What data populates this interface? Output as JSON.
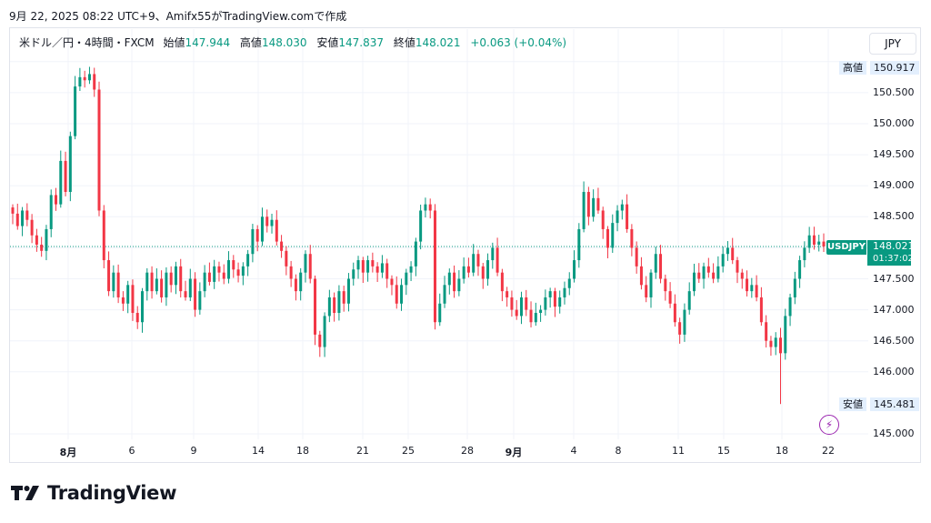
{
  "caption": "9月 22, 2025 08:22 UTC+9、Amifx55がTradingView.comで作成",
  "legend": {
    "symbol": "米ドル／円・4時間・FXCM",
    "open_label": "始値",
    "open": "147.944",
    "high_label": "高値",
    "high": "148.030",
    "low_label": "安値",
    "low": "147.837",
    "close_label": "終値",
    "close": "148.021",
    "change": "+0.063 (+0.04%)"
  },
  "currency_button": "JPY",
  "price_axis": {
    "ticks": [
      "150.500",
      "150.000",
      "149.500",
      "149.000",
      "148.500",
      "147.500",
      "147.000",
      "146.500",
      "146.000",
      "145.000"
    ],
    "high_tag_label": "高値",
    "high_tag_value": "150.917",
    "low_tag_label": "安値",
    "low_tag_value": "145.481",
    "symbol_tag": "USDJPY",
    "last_price": "148.021",
    "countdown": "01:37:02"
  },
  "time_axis": {
    "labels": [
      "8月",
      "6",
      "9",
      "14",
      "18",
      "21",
      "25",
      "28",
      "9月",
      "4",
      "8",
      "11",
      "15",
      "18",
      "22"
    ]
  },
  "logo_text": "TradingView",
  "colors": {
    "up": "#089981",
    "down": "#f23645",
    "grid": "#f0f3fa",
    "bolt": "#9c27b0"
  },
  "chart_data": {
    "type": "candlestick",
    "xlabels": [
      "8月",
      "6",
      "9",
      "14",
      "18",
      "21",
      "25",
      "28",
      "9月",
      "4",
      "8",
      "11",
      "15",
      "18",
      "22"
    ],
    "ylim": [
      144.85,
      151.0
    ],
    "grid": true,
    "last_close": 148.021,
    "period_high": 150.917,
    "period_low": 145.481,
    "closes": [
      148.55,
      148.35,
      148.6,
      148.45,
      148.2,
      148.05,
      147.95,
      148.3,
      148.85,
      148.7,
      149.4,
      148.9,
      149.8,
      150.6,
      150.75,
      150.7,
      150.8,
      150.55,
      148.6,
      147.8,
      147.3,
      147.6,
      147.2,
      147.1,
      147.4,
      146.95,
      146.8,
      147.3,
      147.6,
      147.3,
      147.5,
      147.2,
      147.6,
      147.4,
      147.7,
      147.3,
      147.2,
      147.5,
      147.0,
      147.3,
      147.6,
      147.45,
      147.7,
      147.6,
      147.5,
      147.8,
      147.65,
      147.55,
      147.7,
      147.9,
      148.3,
      148.1,
      148.5,
      148.35,
      148.45,
      148.1,
      147.95,
      147.7,
      147.5,
      147.3,
      147.6,
      147.9,
      147.5,
      146.6,
      146.4,
      146.9,
      147.2,
      146.95,
      147.3,
      147.1,
      147.5,
      147.65,
      147.8,
      147.6,
      147.8,
      147.7,
      147.6,
      147.75,
      147.5,
      147.4,
      147.1,
      147.4,
      147.6,
      147.7,
      148.1,
      148.6,
      148.7,
      148.6,
      146.8,
      147.1,
      147.4,
      147.6,
      147.3,
      147.5,
      147.7,
      147.6,
      147.9,
      147.7,
      147.5,
      147.8,
      148.0,
      147.6,
      147.3,
      147.2,
      147.0,
      146.9,
      147.2,
      147.0,
      146.8,
      146.95,
      147.0,
      147.2,
      147.3,
      147.05,
      147.2,
      147.35,
      147.5,
      147.8,
      148.3,
      148.9,
      148.5,
      148.8,
      148.6,
      148.3,
      148.0,
      148.4,
      148.6,
      148.7,
      148.3,
      148.0,
      147.7,
      147.4,
      147.2,
      147.6,
      147.9,
      147.5,
      147.3,
      147.1,
      146.8,
      146.6,
      147.0,
      147.3,
      147.6,
      147.5,
      147.7,
      147.6,
      147.5,
      147.7,
      147.9,
      148.0,
      147.8,
      147.6,
      147.5,
      147.3,
      147.4,
      147.2,
      146.8,
      146.5,
      146.4,
      146.55,
      146.3,
      146.9,
      147.2,
      147.5,
      147.8,
      148.0,
      148.2,
      148.05,
      148.1,
      148.021
    ]
  }
}
